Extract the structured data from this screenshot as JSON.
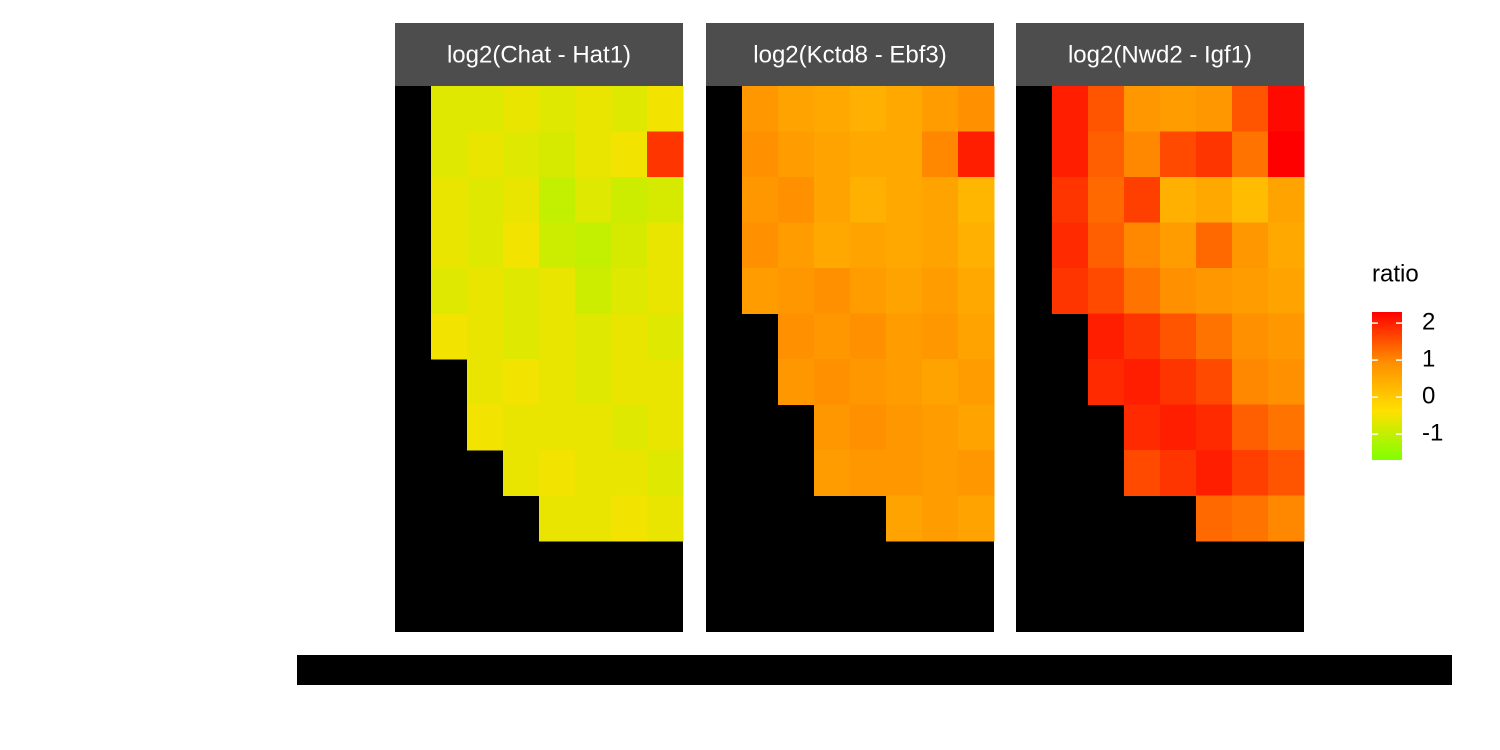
{
  "chart_data": {
    "type": "heatmap",
    "facets": [
      {
        "title": "log2(Chat - Hat1)",
        "values": [
          [
            null,
            -0.7,
            -0.7,
            -0.6,
            -0.7,
            -0.6,
            -0.7,
            -0.5
          ],
          [
            null,
            -0.7,
            -0.6,
            -0.7,
            -0.8,
            -0.6,
            -0.5,
            1.8
          ],
          [
            null,
            -0.6,
            -0.7,
            -0.6,
            -1.0,
            -0.7,
            -0.9,
            -0.8
          ],
          [
            null,
            -0.6,
            -0.7,
            -0.5,
            -0.9,
            -1.0,
            -0.8,
            -0.6
          ],
          [
            null,
            -0.7,
            -0.6,
            -0.7,
            -0.6,
            -0.9,
            -0.7,
            -0.6
          ],
          [
            null,
            -0.5,
            -0.6,
            -0.7,
            -0.6,
            -0.7,
            -0.6,
            -0.7
          ],
          [
            null,
            null,
            -0.6,
            -0.5,
            -0.6,
            -0.7,
            -0.6,
            -0.6
          ],
          [
            null,
            null,
            -0.5,
            -0.6,
            -0.6,
            -0.6,
            -0.7,
            -0.6
          ],
          [
            null,
            null,
            null,
            -0.6,
            -0.5,
            -0.6,
            -0.6,
            -0.7
          ],
          [
            null,
            null,
            null,
            null,
            -0.6,
            -0.6,
            -0.5,
            -0.6
          ],
          [
            null,
            null,
            null,
            null,
            null,
            null,
            null,
            null
          ],
          [
            null,
            null,
            null,
            null,
            null,
            null,
            null,
            null
          ]
        ]
      },
      {
        "title": "log2(Kctd8 - Ebf3)",
        "values": [
          [
            null,
            0.8,
            0.6,
            0.5,
            0.4,
            0.5,
            0.7,
            0.9
          ],
          [
            null,
            0.9,
            0.7,
            0.6,
            0.5,
            0.5,
            1.0,
            2.0
          ],
          [
            null,
            0.8,
            0.9,
            0.6,
            0.4,
            0.5,
            0.6,
            0.3
          ],
          [
            null,
            0.9,
            0.7,
            0.5,
            0.6,
            0.5,
            0.6,
            0.4
          ],
          [
            null,
            0.7,
            0.8,
            0.9,
            0.7,
            0.6,
            0.7,
            0.5
          ],
          [
            null,
            null,
            0.9,
            0.8,
            0.9,
            0.7,
            0.8,
            0.6
          ],
          [
            null,
            null,
            0.8,
            0.9,
            0.8,
            0.7,
            0.6,
            0.7
          ],
          [
            null,
            null,
            null,
            0.8,
            0.9,
            0.8,
            0.7,
            0.6
          ],
          [
            null,
            null,
            null,
            0.7,
            0.8,
            0.8,
            0.7,
            0.8
          ],
          [
            null,
            null,
            null,
            null,
            null,
            0.6,
            0.7,
            0.6
          ],
          [
            null,
            null,
            null,
            null,
            null,
            null,
            null,
            null
          ],
          [
            null,
            null,
            null,
            null,
            null,
            null,
            null,
            null
          ]
        ]
      },
      {
        "title": "log2(Nwd2 - Igf1)",
        "values": [
          [
            null,
            2.0,
            1.5,
            0.8,
            0.7,
            0.8,
            1.5,
            2.2
          ],
          [
            null,
            2.0,
            1.4,
            1.0,
            1.6,
            1.8,
            1.2,
            2.3
          ],
          [
            null,
            1.8,
            1.3,
            1.7,
            0.4,
            0.5,
            0.2,
            0.6
          ],
          [
            null,
            1.9,
            1.4,
            1.0,
            0.7,
            1.3,
            0.8,
            0.5
          ],
          [
            null,
            1.8,
            1.6,
            1.2,
            0.9,
            0.8,
            0.7,
            0.6
          ],
          [
            null,
            null,
            2.0,
            1.8,
            1.5,
            1.2,
            0.9,
            0.8
          ],
          [
            null,
            null,
            1.9,
            2.0,
            1.8,
            1.6,
            1.0,
            0.9
          ],
          [
            null,
            null,
            null,
            1.9,
            2.0,
            1.9,
            1.4,
            1.2
          ],
          [
            null,
            null,
            null,
            1.6,
            1.8,
            2.0,
            1.7,
            1.5
          ],
          [
            null,
            null,
            null,
            null,
            null,
            1.3,
            1.2,
            1.0
          ],
          [
            null,
            null,
            null,
            null,
            null,
            null,
            null,
            null
          ],
          [
            null,
            null,
            null,
            null,
            null,
            null,
            null,
            null
          ]
        ]
      }
    ],
    "legend_title": "ratio",
    "colorlim": [
      -1.7,
      2.3
    ],
    "colorticks": [
      2,
      1,
      0,
      -1
    ],
    "colors": [
      "#80ff00",
      "#ffe000",
      "#ff8c00",
      "#ff0000"
    ]
  }
}
